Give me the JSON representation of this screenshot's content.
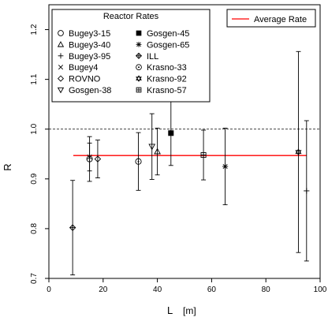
{
  "chart_data": {
    "type": "scatter",
    "xlabel": "L",
    "xunit": "[m]",
    "ylabel": "R",
    "xlim": [
      0,
      100
    ],
    "ylim": [
      0.7,
      1.25
    ],
    "xticks": [
      0,
      20,
      40,
      60,
      80,
      100
    ],
    "yticks": [
      0.7,
      0.8,
      0.9,
      1.0,
      1.1,
      1.2
    ],
    "xtick_labels": [
      "0",
      "20",
      "40",
      "60",
      "80",
      "100"
    ],
    "ytick_labels": [
      "0.7",
      "0.8",
      "0.9",
      "1.0",
      "1.1",
      "1.2"
    ],
    "reference_line": 1.0,
    "average_rate": {
      "label": "Average Rate",
      "value": 0.947,
      "x_range": [
        9,
        95
      ],
      "color": "#ff0000"
    },
    "legend_title": "Reactor Rates",
    "legend_placement": "top-left",
    "series": [
      {
        "name": "Bugey3-15",
        "marker": "circle",
        "x": 15,
        "y": 0.94,
        "err": 0.045
      },
      {
        "name": "Bugey3-40",
        "marker": "triangle-up",
        "x": 40,
        "y": 0.955,
        "err": 0.047
      },
      {
        "name": "Bugey3-95",
        "marker": "plus",
        "x": 95,
        "y": 0.876,
        "err": 0.141
      },
      {
        "name": "Bugey4",
        "marker": "x",
        "x": 15,
        "y": 0.944,
        "err": 0.028
      },
      {
        "name": "ROVNO",
        "marker": "diamond",
        "x": 18,
        "y": 0.94,
        "err": 0.038
      },
      {
        "name": "Gosgen-38",
        "marker": "triangle-down",
        "x": 38,
        "y": 0.965,
        "err": 0.066
      },
      {
        "name": "Gosgen-45",
        "marker": "square-filled",
        "x": 45,
        "y": 0.992,
        "err": 0.065
      },
      {
        "name": "Gosgen-65",
        "marker": "asterisk",
        "x": 65,
        "y": 0.925,
        "err": 0.077
      },
      {
        "name": "ILL",
        "marker": "diamond-cross",
        "x": 8.76,
        "y": 0.802,
        "err": 0.095
      },
      {
        "name": "Krasno-33",
        "marker": "circle-dot",
        "x": 33,
        "y": 0.935,
        "err": 0.058
      },
      {
        "name": "Krasno-92",
        "marker": "star-of-david",
        "x": 92,
        "y": 0.954,
        "err": 0.202
      },
      {
        "name": "Krasno-57",
        "marker": "square-cross",
        "x": 57,
        "y": 0.948,
        "err": 0.05
      }
    ]
  }
}
